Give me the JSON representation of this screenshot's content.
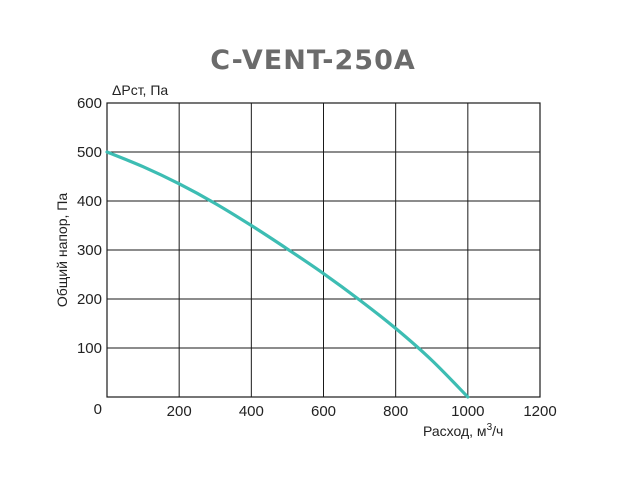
{
  "chart_data": {
    "type": "line",
    "title": "C-VENT-250A",
    "ylabel": "Общий напор, Па",
    "ylabel_top": "ΔPст, Па",
    "xlabel_prefix": "Расход, м",
    "xlabel_sup": "3",
    "xlabel_suffix": "/ч",
    "xlim": [
      0,
      1200
    ],
    "ylim": [
      0,
      600
    ],
    "x_ticks": [
      "0",
      "200",
      "400",
      "600",
      "800",
      "1000",
      "1200"
    ],
    "y_ticks": [
      "0",
      "100",
      "200",
      "300",
      "400",
      "500",
      "600"
    ],
    "grid": true,
    "line_color": "#3dbdb3",
    "series": [
      {
        "x": [
          0,
          100,
          200,
          300,
          400,
          500,
          600,
          700,
          800,
          900,
          1000
        ],
        "y": [
          500,
          470,
          435,
          395,
          350,
          302,
          252,
          198,
          140,
          75,
          0
        ]
      }
    ]
  }
}
